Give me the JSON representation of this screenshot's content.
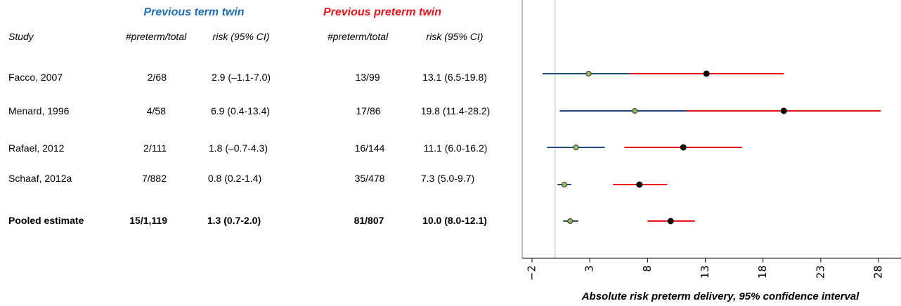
{
  "headers": {
    "group_term": "Previous term twin",
    "group_preterm": "Previous preterm twin",
    "study": "Study",
    "count_term": "#preterm/total",
    "risk_term": "risk (95% CI)",
    "count_preterm": "#preterm/total",
    "risk_preterm": "risk (95% CI)"
  },
  "rows": [
    {
      "study": "Facco, 2007",
      "term_count": "2/68",
      "term_risk": "2.9 (–1.1-7.0)",
      "preterm_count": "13/99",
      "preterm_risk": "13.1 (6.5-19.8)"
    },
    {
      "study": "Menard, 1996",
      "term_count": "4/58",
      "term_risk": "6.9 (0.4-13.4)",
      "preterm_count": "17/86",
      "preterm_risk": "19.8 (11.4-28.2)"
    },
    {
      "study": "Rafael, 2012",
      "term_count": "2/111",
      "term_risk": "1.8 (–0.7-4.3)",
      "preterm_count": "16/144",
      "preterm_risk": "11.1 (6.0-16.2)"
    },
    {
      "study": "Schaaf, 2012a",
      "term_count": "7/882",
      "term_risk": "0.8 (0.2-1.4)",
      "preterm_count": "35/478",
      "preterm_risk": "7.3 (5.0-9.7)"
    },
    {
      "study": "Pooled estimate",
      "term_count": "15/1,119",
      "term_risk": "1.3 (0.7-2.0)",
      "preterm_count": "81/807",
      "preterm_risk": "10.0 (8.0-12.1)"
    }
  ],
  "colors": {
    "term_header": "#1f6fb4",
    "preterm_header": "#e8141c",
    "term_line": "#1f4e79",
    "preterm_line": "#e8141c",
    "term_point": "#9bbb59",
    "preterm_point": "#000000"
  },
  "chart_data": {
    "type": "forest",
    "categories": [
      "Facco, 2007",
      "Menard, 1996",
      "Rafael, 2012",
      "Schaaf, 2012a",
      "Pooled estimate"
    ],
    "series": [
      {
        "name": "Previous term twin",
        "estimates": [
          2.9,
          6.9,
          1.8,
          0.8,
          1.3
        ],
        "lower": [
          -1.1,
          0.4,
          -0.7,
          0.2,
          0.7
        ],
        "upper": [
          7.0,
          13.4,
          4.3,
          1.4,
          2.0
        ]
      },
      {
        "name": "Previous preterm twin",
        "estimates": [
          13.1,
          19.8,
          11.1,
          7.3,
          10.0
        ],
        "lower": [
          6.5,
          11.4,
          6.0,
          5.0,
          8.0
        ],
        "upper": [
          19.8,
          28.2,
          16.2,
          9.7,
          12.1
        ]
      }
    ],
    "xlim": [
      -2,
      30
    ],
    "xticks": [
      -2,
      3,
      8,
      13,
      18,
      23,
      28
    ],
    "reference_line": 0,
    "xlabel": "Absolute risk preterm delivery, 95% confidence interval"
  }
}
